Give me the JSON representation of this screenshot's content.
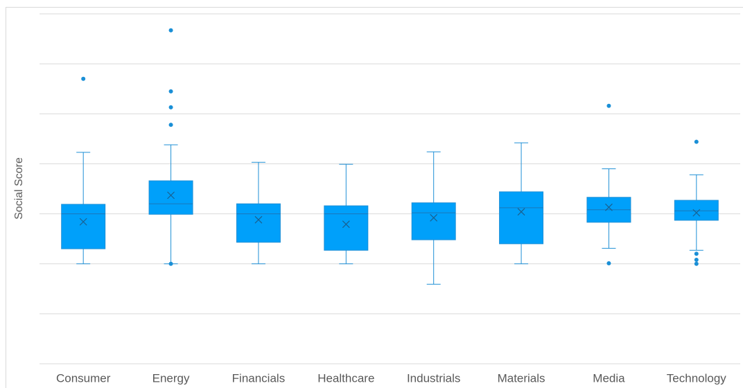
{
  "chart_data": {
    "type": "box",
    "y_label": "Social Score",
    "categories": [
      "Consumer",
      "Energy",
      "Financials",
      "Healthcare",
      "Industrials",
      "Materials",
      "Media",
      "Technology"
    ],
    "color": "#00a0fa",
    "edge_color": "#1e8fd6",
    "boxes": [
      {
        "whisker_low": 2.0,
        "q1": 2.3,
        "median": 3.0,
        "q3": 3.19,
        "whisker_high": 4.23,
        "mean": 2.84,
        "outliers": [
          5.7
        ]
      },
      {
        "whisker_low": 2.0,
        "q1": 2.99,
        "median": 3.2,
        "q3": 3.66,
        "whisker_high": 4.38,
        "mean": 3.37,
        "outliers": [
          6.67,
          5.45,
          5.13,
          4.78,
          2.0
        ]
      },
      {
        "whisker_low": 2.0,
        "q1": 2.43,
        "median": 3.0,
        "q3": 3.2,
        "whisker_high": 4.03,
        "mean": 2.88,
        "outliers": []
      },
      {
        "whisker_low": 2.0,
        "q1": 2.27,
        "median": 3.0,
        "q3": 3.16,
        "whisker_high": 3.99,
        "mean": 2.79,
        "outliers": []
      },
      {
        "whisker_low": 1.59,
        "q1": 2.48,
        "median": 3.02,
        "q3": 3.22,
        "whisker_high": 4.24,
        "mean": 2.92,
        "outliers": []
      },
      {
        "whisker_low": 2.0,
        "q1": 2.4,
        "median": 3.12,
        "q3": 3.44,
        "whisker_high": 4.42,
        "mean": 3.04,
        "outliers": []
      },
      {
        "whisker_low": 2.31,
        "q1": 2.83,
        "median": 3.08,
        "q3": 3.33,
        "whisker_high": 3.9,
        "mean": 3.13,
        "outliers": [
          5.16,
          2.01
        ]
      },
      {
        "whisker_low": 2.27,
        "q1": 2.87,
        "median": 3.06,
        "q3": 3.27,
        "whisker_high": 3.78,
        "mean": 3.02,
        "outliers": [
          4.44,
          2.2,
          2.08,
          2.0
        ]
      }
    ],
    "ylim": [
      0,
      7
    ],
    "yticks": [
      0,
      1,
      2,
      3,
      4,
      5,
      6,
      7
    ],
    "grid": true
  }
}
